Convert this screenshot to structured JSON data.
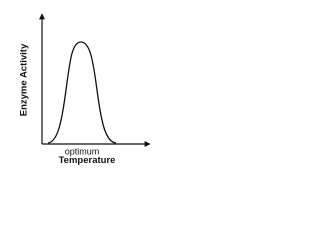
{
  "y_axis": {
    "label": "Enzyme Activity"
  },
  "x_axis": {
    "label": "Temperature",
    "marker": "optimum"
  }
}
